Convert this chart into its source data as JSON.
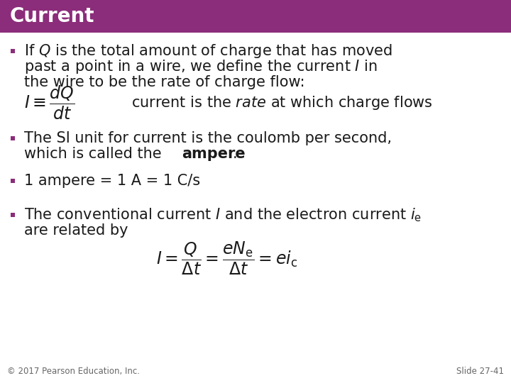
{
  "title": "Current",
  "title_bg_color": "#8B2D7A",
  "title_text_color": "#FFFFFF",
  "body_bg_color": "#FFFFFF",
  "bullet_color": "#8B2D7A",
  "text_color": "#1A1A1A",
  "footer_left": "© 2017 Pearson Education, Inc.",
  "footer_right": "Slide 27-41",
  "footer_color": "#666666",
  "title_fontsize": 20,
  "body_fontsize": 15,
  "formula_fontsize": 15,
  "small_fontsize": 8.5
}
